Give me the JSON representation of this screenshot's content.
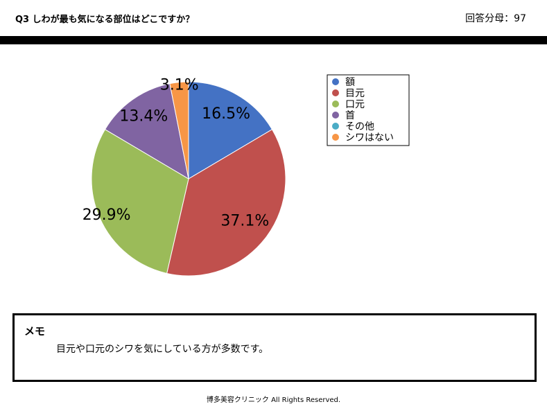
{
  "header": {
    "question_title": "Q3 しわが最も気になる部位はどこですか？",
    "respondents_label": "回答分母：97"
  },
  "chart_data": {
    "type": "pie",
    "categories": [
      "額",
      "目元",
      "口元",
      "首",
      "その他",
      "シワはない"
    ],
    "values": [
      16.5,
      37.1,
      29.9,
      13.4,
      0,
      3.1
    ],
    "labels": [
      "16.5%",
      "37.1%",
      "29.9%",
      "13.4%",
      "",
      "3.1%"
    ],
    "colors": [
      "#4472C4",
      "#C0504D",
      "#9BBB59",
      "#8064A2",
      "#4BACC6",
      "#F79646"
    ],
    "legend_position": "right"
  },
  "memo": {
    "title": "メモ",
    "text": "目元や口元のシワを気にしている方が多数です。"
  },
  "footer": {
    "copyright": "博多美容クリニック  All Rights Reserved."
  }
}
